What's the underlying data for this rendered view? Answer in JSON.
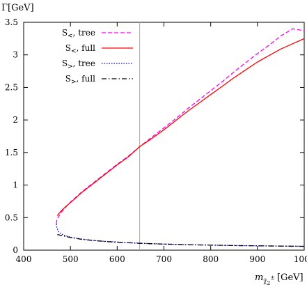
{
  "chart_data": {
    "type": "line",
    "title": "",
    "ylabel": {
      "main": "Γ",
      "unit": "[GeV]"
    },
    "xlabel": {
      "base": "m",
      "sub_chi": "χ̃",
      "sub_num": "2",
      "sub_pm": "±",
      "unit": "[GeV]"
    },
    "xlim": [
      400,
      1000
    ],
    "ylim": [
      0,
      3.5
    ],
    "x_ticks": [
      400,
      500,
      600,
      700,
      800,
      900,
      1000
    ],
    "y_ticks": [
      0,
      0.5,
      1,
      1.5,
      2,
      2.5,
      3,
      3.5
    ],
    "x_tick_labels": [
      "400",
      "500",
      "600",
      "700",
      "800",
      "900",
      "1000"
    ],
    "y_tick_labels": [
      "0",
      "0.5",
      "1",
      "1.5",
      "2",
      "2.5",
      "3",
      "3.5"
    ],
    "vertical_line_x": 648,
    "legend_position": "top-left",
    "series": [
      {
        "name": "S<, tree",
        "label_main": "S",
        "label_sub": "<",
        "label_rest": ", tree",
        "color": "#ff00ff",
        "dash": "6,3",
        "x": [
          470,
          471,
          475,
          480,
          490,
          500,
          525,
          550,
          575,
          600,
          625,
          648,
          675,
          700,
          725,
          750,
          775,
          800,
          825,
          850,
          875,
          900,
          925,
          950,
          975,
          1000
        ],
        "y": [
          0.4,
          0.47,
          0.52,
          0.58,
          0.66,
          0.74,
          0.9,
          1.04,
          1.18,
          1.32,
          1.45,
          1.59,
          1.74,
          1.88,
          2.02,
          2.17,
          2.31,
          2.45,
          2.59,
          2.74,
          2.88,
          3.02,
          3.15,
          3.29,
          3.4,
          3.37
        ]
      },
      {
        "name": "S<, full",
        "label_main": "S",
        "label_sub": "<",
        "label_rest": ", full",
        "color": "#ff0000",
        "dash": "",
        "x": [
          472,
          475,
          480,
          490,
          500,
          525,
          550,
          575,
          600,
          625,
          648,
          675,
          700,
          725,
          750,
          775,
          800,
          825,
          850,
          875,
          900,
          925,
          950,
          975,
          1000
        ],
        "y": [
          0.53,
          0.56,
          0.6,
          0.67,
          0.73,
          0.89,
          1.03,
          1.17,
          1.31,
          1.44,
          1.59,
          1.72,
          1.85,
          1.99,
          2.13,
          2.26,
          2.39,
          2.52,
          2.65,
          2.77,
          2.89,
          2.99,
          3.09,
          3.17,
          3.25
        ]
      },
      {
        "name": "S>, tree",
        "label_main": "S",
        "label_sub": ">",
        "label_rest": ", tree",
        "color": "#0000cc",
        "dash": "1.5,2",
        "x": [
          470,
          471,
          475,
          480,
          490,
          500,
          525,
          550,
          575,
          600,
          625,
          648,
          675,
          700,
          750,
          800,
          850,
          900,
          950,
          1000
        ],
        "y": [
          0.4,
          0.34,
          0.28,
          0.25,
          0.22,
          0.2,
          0.17,
          0.15,
          0.135,
          0.125,
          0.115,
          0.107,
          0.1,
          0.094,
          0.085,
          0.078,
          0.072,
          0.067,
          0.063,
          0.06
        ]
      },
      {
        "name": "S>, full",
        "label_main": "S",
        "label_sub": ">",
        "label_rest": ", full",
        "color": "#000000",
        "dash": "7,3,1.5,3",
        "x": [
          472,
          475,
          480,
          490,
          500,
          525,
          550,
          575,
          600,
          625,
          648,
          675,
          700,
          750,
          800,
          850,
          900,
          950,
          1000
        ],
        "y": [
          0.24,
          0.235,
          0.225,
          0.21,
          0.195,
          0.165,
          0.148,
          0.133,
          0.122,
          0.113,
          0.105,
          0.098,
          0.093,
          0.084,
          0.077,
          0.071,
          0.066,
          0.062,
          0.058
        ]
      }
    ]
  }
}
